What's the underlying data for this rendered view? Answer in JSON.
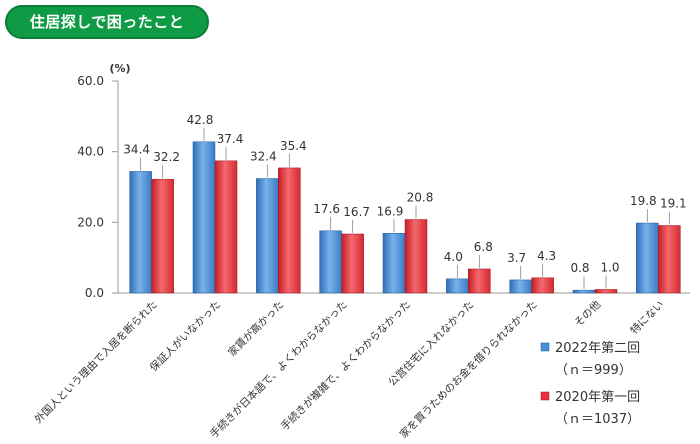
{
  "header": {
    "title": "住居探しで困ったこと"
  },
  "chart_data": {
    "type": "bar",
    "unit": "(%)",
    "ylim": [
      0,
      60
    ],
    "yticks": [
      "0.0",
      "20.0",
      "40.0",
      "60.0"
    ],
    "categories": [
      "外国人という理由で入居を断られた",
      "保証人がいなかった",
      "家賃が高かった",
      "手続きが日本語で、よくわからなかった",
      "手続きが複雑で、よくわからなかった",
      "公営住宅に入れなかった",
      "家を買うためのお金を借りられなかった",
      "その他",
      "特にない"
    ],
    "series": [
      {
        "name": "2022年第二回",
        "n": "（ｎ＝999）",
        "color": "#4a90d9",
        "values": [
          34.4,
          42.8,
          32.4,
          17.6,
          16.9,
          4.0,
          3.7,
          0.8,
          19.8
        ],
        "labels": [
          "34.4",
          "42.8",
          "32.4",
          "17.6",
          "16.9",
          "4.0",
          "3.7",
          "0.8",
          "19.8"
        ]
      },
      {
        "name": "2020年第一回",
        "n": "（ｎ＝1037）",
        "color": "#e8323a",
        "values": [
          32.2,
          37.4,
          35.4,
          16.7,
          20.8,
          6.8,
          4.3,
          1.0,
          19.1
        ],
        "labels": [
          "32.2",
          "37.4",
          "35.4",
          "16.7",
          "20.8",
          "6.8",
          "4.3",
          "1.0",
          "19.1"
        ]
      }
    ],
    "grid": false,
    "legend_position": "bottom-right"
  }
}
